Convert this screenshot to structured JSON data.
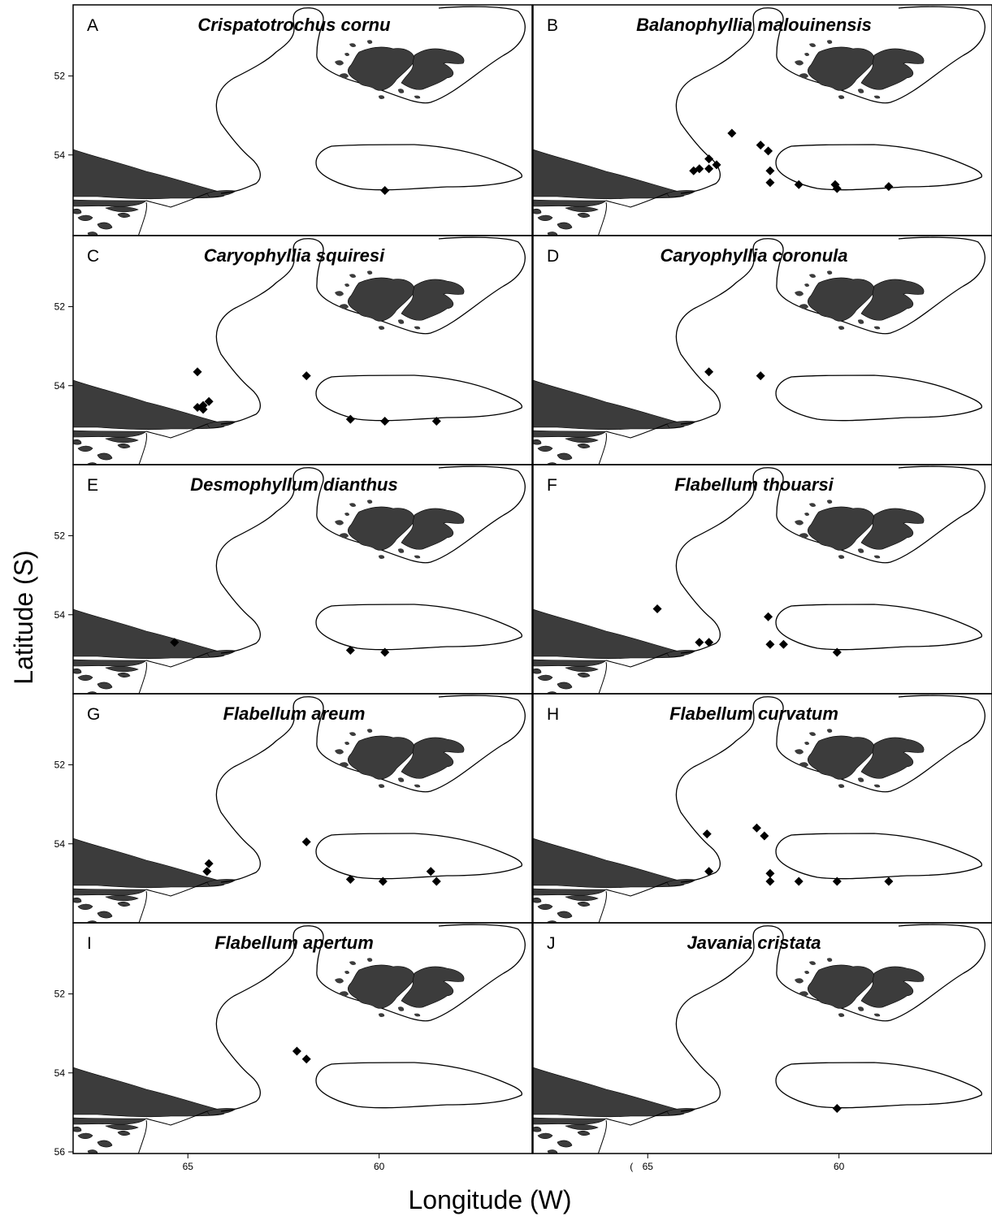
{
  "figure": {
    "y_axis_title": "Latitude (S)",
    "x_axis_title": "Longitude (W)",
    "lat_ticks": [
      "52",
      "54",
      "56"
    ],
    "lon_ticks": [
      "65",
      "60"
    ],
    "stray_mark": "("
  },
  "map": {
    "land_color": "#3c3c3c",
    "line_color": "#000000",
    "marker": "diamond",
    "lat_range": [
      50.2,
      56
    ],
    "lon_range": [
      68,
      56
    ]
  },
  "panels": [
    {
      "letter": "A",
      "species": "Crispatotrochus cornu",
      "records": [
        [
          59.85,
          54.9
        ]
      ]
    },
    {
      "letter": "B",
      "species": "Balanophyllia malouinensis",
      "records": [
        [
          62.8,
          53.45
        ],
        [
          62.05,
          53.75
        ],
        [
          61.85,
          53.9
        ],
        [
          63.4,
          54.1
        ],
        [
          63.2,
          54.25
        ],
        [
          63.65,
          54.35
        ],
        [
          63.4,
          54.35
        ],
        [
          63.8,
          54.4
        ],
        [
          61.8,
          54.4
        ],
        [
          61.8,
          54.7
        ],
        [
          61.05,
          54.75
        ],
        [
          60.1,
          54.75
        ],
        [
          60.05,
          54.85
        ],
        [
          58.7,
          54.8
        ]
      ]
    },
    {
      "letter": "C",
      "species": "Caryophyllia squiresi",
      "records": [
        [
          64.75,
          53.65
        ],
        [
          61.9,
          53.75
        ],
        [
          64.45,
          54.4
        ],
        [
          64.6,
          54.5
        ],
        [
          64.75,
          54.55
        ],
        [
          64.6,
          54.6
        ],
        [
          60.75,
          54.85
        ],
        [
          59.85,
          54.9
        ],
        [
          58.5,
          54.9
        ]
      ]
    },
    {
      "letter": "D",
      "species": "Caryophyllia coronula",
      "records": [
        [
          63.4,
          53.65
        ],
        [
          62.05,
          53.75
        ]
      ]
    },
    {
      "letter": "E",
      "species": "Desmophyllum dianthus",
      "records": [
        [
          65.35,
          54.7
        ],
        [
          60.75,
          54.9
        ],
        [
          59.85,
          54.95
        ]
      ]
    },
    {
      "letter": "F",
      "species": "Flabellum thouarsi",
      "records": [
        [
          64.75,
          53.85
        ],
        [
          61.85,
          54.05
        ],
        [
          63.4,
          54.7
        ],
        [
          63.65,
          54.7
        ],
        [
          61.8,
          54.75
        ],
        [
          61.45,
          54.75
        ],
        [
          60.05,
          54.95
        ]
      ]
    },
    {
      "letter": "G",
      "species": "Flabellum areum",
      "records": [
        [
          61.9,
          53.95
        ],
        [
          64.45,
          54.5
        ],
        [
          64.5,
          54.7
        ],
        [
          58.65,
          54.7
        ],
        [
          60.75,
          54.9
        ],
        [
          59.9,
          54.95
        ],
        [
          58.5,
          54.95
        ]
      ]
    },
    {
      "letter": "H",
      "species": "Flabellum curvatum",
      "records": [
        [
          62.15,
          53.6
        ],
        [
          61.95,
          53.8
        ],
        [
          63.45,
          53.75
        ],
        [
          63.4,
          54.7
        ],
        [
          61.8,
          54.75
        ],
        [
          61.8,
          54.95
        ],
        [
          61.05,
          54.95
        ],
        [
          60.05,
          54.95
        ],
        [
          58.7,
          54.95
        ]
      ]
    },
    {
      "letter": "I",
      "species": "Flabellum apertum",
      "records": [
        [
          62.15,
          53.45
        ],
        [
          61.9,
          53.65
        ]
      ]
    },
    {
      "letter": "J",
      "species": "Javania cristata",
      "records": [
        [
          60.05,
          54.9
        ]
      ]
    }
  ]
}
